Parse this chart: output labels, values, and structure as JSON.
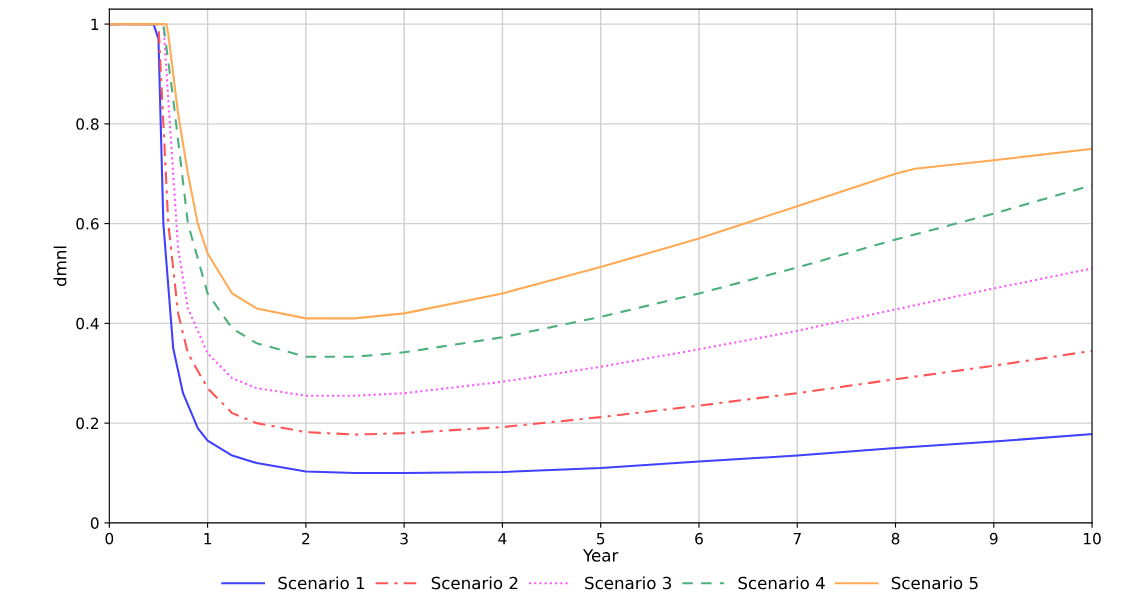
{
  "chart_data": {
    "type": "line",
    "xlabel": "Year",
    "ylabel": "dmnl",
    "xlim": [
      0,
      10
    ],
    "ylim": [
      0,
      1.03
    ],
    "xticks": [
      0,
      1,
      2,
      3,
      4,
      5,
      6,
      7,
      8,
      9,
      10
    ],
    "yticks": [
      0,
      0.2,
      0.4,
      0.6,
      0.8,
      1
    ],
    "grid": true,
    "legend": "bottom",
    "marker": "none",
    "series": [
      {
        "name": "Scenario 1",
        "color": "#4040ff",
        "line_style": "solid",
        "x": [
          0,
          0.45,
          0.5,
          0.55,
          0.65,
          0.75,
          0.9,
          1,
          1.25,
          1.5,
          2,
          2.5,
          3,
          4,
          5,
          6,
          7,
          8,
          9,
          10
        ],
        "values": [
          1,
          1,
          0.97,
          0.6,
          0.35,
          0.26,
          0.19,
          0.165,
          0.135,
          0.12,
          0.103,
          0.1,
          0.1,
          0.102,
          0.11,
          0.123,
          0.135,
          0.15,
          0.163,
          0.178
        ]
      },
      {
        "name": "Scenario 2",
        "color": "#ff5555",
        "line_style": "dashdot",
        "x": [
          0,
          0.5,
          0.55,
          0.6,
          0.7,
          0.8,
          1,
          1.25,
          1.5,
          2,
          2.5,
          3,
          4,
          5,
          6,
          7,
          8,
          9,
          10
        ],
        "values": [
          1,
          1,
          0.8,
          0.6,
          0.42,
          0.34,
          0.27,
          0.22,
          0.2,
          0.182,
          0.177,
          0.18,
          0.192,
          0.212,
          0.235,
          0.26,
          0.288,
          0.315,
          0.345
        ]
      },
      {
        "name": "Scenario 3",
        "color": "#ff55ff",
        "line_style": "dotted",
        "x": [
          0,
          0.55,
          0.6,
          0.7,
          0.8,
          1,
          1.25,
          1.5,
          2,
          2.5,
          3,
          4,
          5,
          6,
          7,
          8,
          9,
          10
        ],
        "values": [
          1,
          1,
          0.85,
          0.55,
          0.43,
          0.34,
          0.29,
          0.27,
          0.255,
          0.255,
          0.26,
          0.283,
          0.313,
          0.348,
          0.385,
          0.428,
          0.47,
          0.51
        ]
      },
      {
        "name": "Scenario 4",
        "color": "#4caf7d",
        "line_style": "dashed",
        "x": [
          0,
          0.55,
          0.65,
          0.8,
          1,
          1.25,
          1.5,
          2,
          2.5,
          3,
          4,
          5,
          6,
          7,
          8,
          9,
          10
        ],
        "values": [
          1,
          1,
          0.85,
          0.6,
          0.46,
          0.39,
          0.36,
          0.333,
          0.333,
          0.342,
          0.372,
          0.413,
          0.46,
          0.512,
          0.568,
          0.62,
          0.677
        ]
      },
      {
        "name": "Scenario 5",
        "color": "#ffaa55",
        "line_style": "solid",
        "x": [
          0,
          0.58,
          0.6,
          0.7,
          0.8,
          0.9,
          1,
          1.25,
          1.5,
          2,
          2.5,
          3,
          4,
          5,
          6,
          7,
          8,
          8.2,
          9,
          10
        ],
        "values": [
          1,
          1,
          0.98,
          0.82,
          0.7,
          0.6,
          0.54,
          0.46,
          0.43,
          0.41,
          0.41,
          0.42,
          0.46,
          0.513,
          0.57,
          0.635,
          0.7,
          0.71,
          0.727,
          0.75
        ]
      }
    ]
  }
}
